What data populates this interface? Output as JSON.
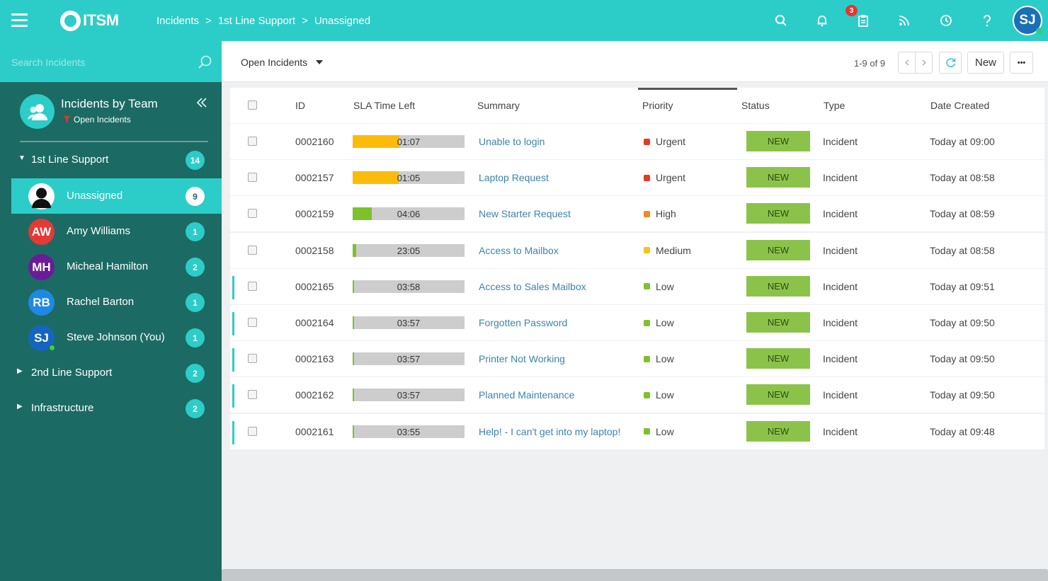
{
  "app": {
    "logo_text": "ITSM",
    "breadcrumb": [
      "Incidents",
      "1st Line Support",
      "Unassigned"
    ],
    "breadcrumb_sep": ">",
    "notification_count": "3",
    "user_initials": "SJ"
  },
  "sidebar": {
    "search_placeholder": "Search Incidents",
    "team_title": "Incidents by Team",
    "team_filter": "Open Incidents",
    "groups": [
      {
        "label": "1st Line Support",
        "count": "14",
        "expanded": true
      },
      {
        "label": "2nd Line Support",
        "count": "2",
        "expanded": false
      },
      {
        "label": "Infrastructure",
        "count": "2",
        "expanded": false
      }
    ],
    "members": [
      {
        "label": "Unassigned",
        "count": "9",
        "initials": "",
        "color": "#ffffff"
      },
      {
        "label": "Amy Williams",
        "count": "1",
        "initials": "AW",
        "color": "#e53935"
      },
      {
        "label": "Micheal Hamilton",
        "count": "2",
        "initials": "MH",
        "color": "#6a1b9a"
      },
      {
        "label": "Rachel Barton",
        "count": "1",
        "initials": "RB",
        "color": "#1e88e5"
      },
      {
        "label": "Steve Johnson (You)",
        "count": "1",
        "initials": "SJ",
        "color": "#1565c0"
      }
    ]
  },
  "toolbar": {
    "view_label": "Open Incidents",
    "pager": "1-9 of 9",
    "new_label": "New",
    "more_label": "•••"
  },
  "table": {
    "columns": [
      "ID",
      "SLA Time Left",
      "Summary",
      "Priority",
      "Status",
      "Type",
      "Date Created"
    ],
    "priority_colors": {
      "Urgent": "#e53a1e",
      "High": "#f5891f",
      "Medium": "#f7c21b",
      "Low": "#7cc22b"
    },
    "rows": [
      {
        "id": "0002160",
        "sla": "01:07",
        "sla_fraction": 0.42,
        "sla_color": "#fbbb0b",
        "summary": "Unable to login",
        "priority": "Urgent",
        "status": "NEW",
        "type": "Incident",
        "date": "Today at 09:00",
        "accent": false
      },
      {
        "id": "0002157",
        "sla": "01:05",
        "sla_fraction": 0.41,
        "sla_color": "#fbbb0b",
        "summary": "Laptop Request",
        "priority": "Urgent",
        "status": "NEW",
        "type": "Incident",
        "date": "Today at 08:58",
        "accent": false
      },
      {
        "id": "0002159",
        "sla": "04:06",
        "sla_fraction": 0.17,
        "sla_color": "#7cc22b",
        "summary": "New Starter Request",
        "priority": "High",
        "status": "NEW",
        "type": "Incident",
        "date": "Today at 08:59",
        "accent": false
      },
      {
        "id": "0002158",
        "sla": "23:05",
        "sla_fraction": 0.03,
        "sla_color": "#7cc22b",
        "summary": "Access to Mailbox",
        "priority": "Medium",
        "status": "NEW",
        "type": "Incident",
        "date": "Today at 08:58",
        "accent": false
      },
      {
        "id": "0002165",
        "sla": "03:58",
        "sla_fraction": 0.01,
        "sla_color": "#7cc22b",
        "summary": "Access to Sales Mailbox",
        "priority": "Low",
        "status": "NEW",
        "type": "Incident",
        "date": "Today at 09:51",
        "accent": true
      },
      {
        "id": "0002164",
        "sla": "03:57",
        "sla_fraction": 0.01,
        "sla_color": "#7cc22b",
        "summary": "Forgotten Password",
        "priority": "Low",
        "status": "NEW",
        "type": "Incident",
        "date": "Today at 09:50",
        "accent": true
      },
      {
        "id": "0002163",
        "sla": "03:57",
        "sla_fraction": 0.01,
        "sla_color": "#7cc22b",
        "summary": "Printer Not Working",
        "priority": "Low",
        "status": "NEW",
        "type": "Incident",
        "date": "Today at 09:50",
        "accent": true
      },
      {
        "id": "0002162",
        "sla": "03:57",
        "sla_fraction": 0.01,
        "sla_color": "#7cc22b",
        "summary": "Planned Maintenance",
        "priority": "Low",
        "status": "NEW",
        "type": "Incident",
        "date": "Today at 09:50",
        "accent": true
      },
      {
        "id": "0002161",
        "sla": "03:55",
        "sla_fraction": 0.01,
        "sla_color": "#7cc22b",
        "summary": "Help! - I can't get into my laptop!",
        "priority": "Low",
        "status": "NEW",
        "type": "Incident",
        "date": "Today at 09:48",
        "accent": true
      }
    ]
  }
}
